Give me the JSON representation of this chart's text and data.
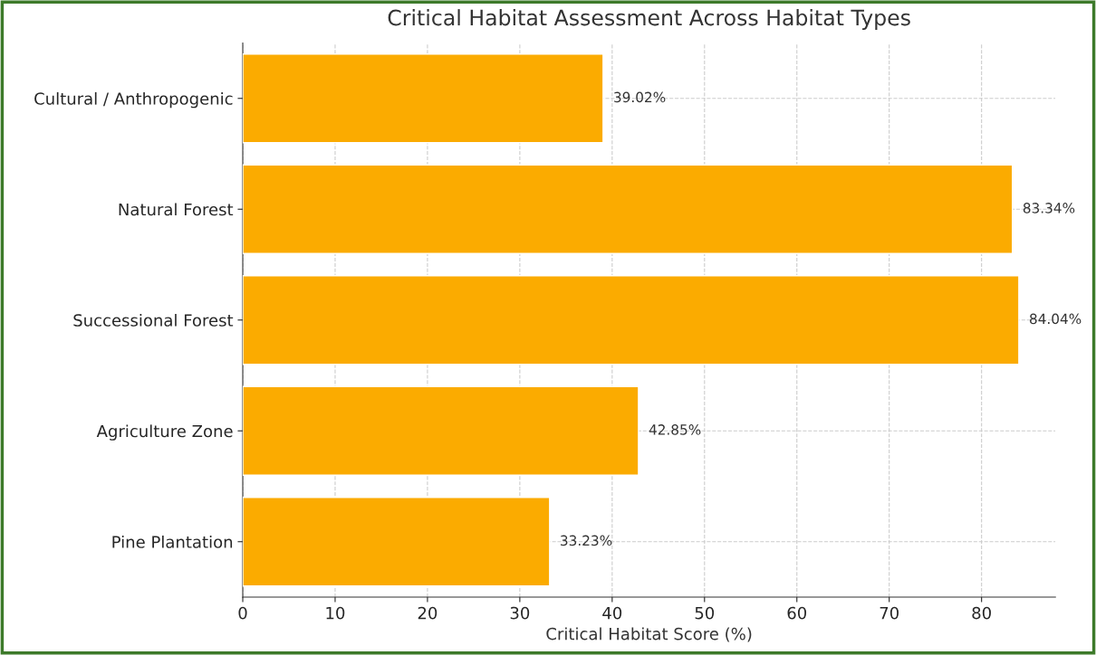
{
  "chart_data": {
    "type": "bar",
    "orientation": "horizontal",
    "title": "Critical Habitat Assessment Across Habitat Types",
    "xlabel": "Critical Habitat Score (%)",
    "categories": [
      "Cultural / Anthropogenic",
      "Natural Forest",
      "Successional Forest",
      "Agriculture Zone",
      "Pine Plantation"
    ],
    "values": [
      39.02,
      83.34,
      84.04,
      42.85,
      33.23
    ],
    "value_labels": [
      "39.02%",
      "83.34%",
      "84.04%",
      "42.85%",
      "33.23%"
    ],
    "color": "#fbab00",
    "xlim": [
      0,
      88
    ],
    "xticks": [
      0,
      10,
      20,
      30,
      40,
      50,
      60,
      70,
      80
    ],
    "grid": true
  }
}
